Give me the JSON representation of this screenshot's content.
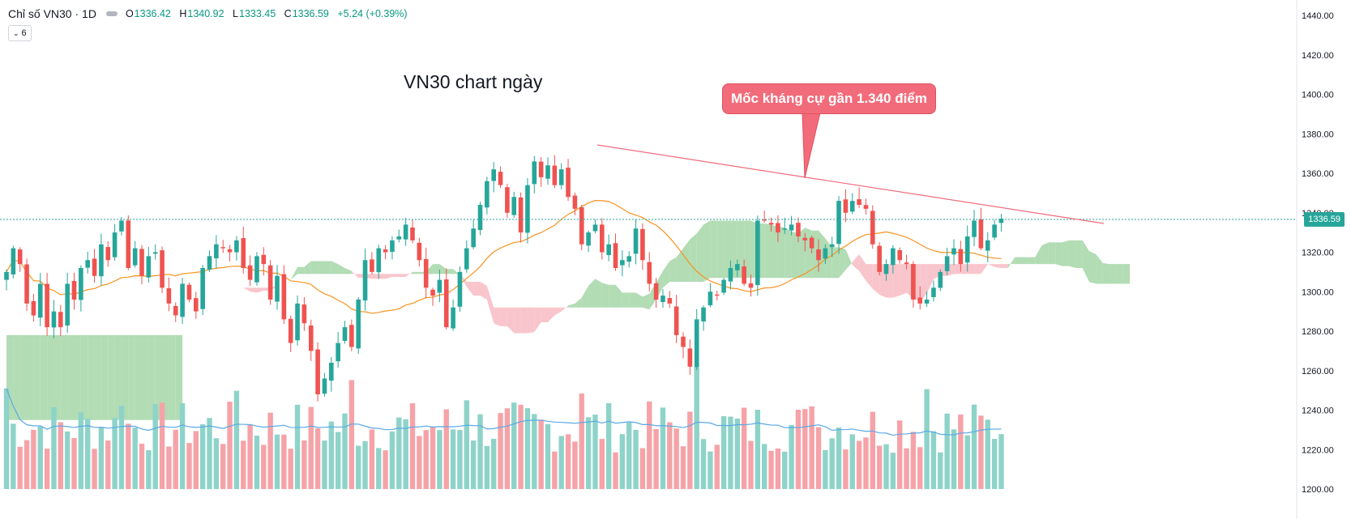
{
  "legend": {
    "title": "Chỉ số VN30 · 1D",
    "o_label": "O",
    "o_val": "1336.42",
    "h_label": "H",
    "h_val": "1340.92",
    "l_label": "L",
    "l_val": "1333.45",
    "c_label": "C",
    "c_val": "1336.59",
    "change": "+5.24 (+0.39%)",
    "indicators_count": "6"
  },
  "annotations": {
    "title": "VN30 chart ngày",
    "callout": "Mốc kháng cự gần 1.340 điểm"
  },
  "colors": {
    "up": "#26a69a",
    "down": "#ef5350",
    "vol_up": "#8ed3c9",
    "vol_down": "#f5a3a8",
    "ma": "#f7931e",
    "vol_ma": "#5aa8e6",
    "cloud_green": "#a5d6a7",
    "cloud_red": "#f8bbc3",
    "trendline": "#f06b7d"
  },
  "chart_data": {
    "type": "candlestick",
    "title": "Chỉ số VN30 · 1D",
    "y_axis": {
      "ticks": [
        1440,
        1420,
        1400,
        1380,
        1360,
        1340,
        1320,
        1300,
        1280,
        1260,
        1240,
        1220,
        1200
      ],
      "labels": [
        "1440.00",
        "1420.00",
        "1400.00",
        "1380.00",
        "1360.00",
        "1340.00",
        "1320.00",
        "1300.00",
        "1280.00",
        "1260.00",
        "1240.00",
        "1220.00",
        "1200.00"
      ],
      "range": [
        1196,
        1447
      ]
    },
    "last_price": 1336.59,
    "last_price_label": "1336.59",
    "closes": [
      1310,
      1322,
      1314,
      1294,
      1288,
      1304,
      1282,
      1290,
      1282,
      1304,
      1296,
      1312,
      1316,
      1308,
      1324,
      1316,
      1330,
      1336,
      1312,
      1322,
      1308,
      1318,
      1320,
      1302,
      1294,
      1288,
      1304,
      1296,
      1290,
      1312,
      1318,
      1324,
      1322,
      1320,
      1326,
      1312,
      1306,
      1318,
      1314,
      1296,
      1308,
      1286,
      1274,
      1294,
      1284,
      1270,
      1248,
      1256,
      1264,
      1274,
      1282,
      1272,
      1296,
      1316,
      1310,
      1322,
      1320,
      1326,
      1328,
      1334,
      1326,
      1316,
      1302,
      1298,
      1306,
      1282,
      1292,
      1310,
      1322,
      1332,
      1344,
      1356,
      1362,
      1354,
      1340,
      1348,
      1330,
      1354,
      1366,
      1358,
      1364,
      1354,
      1362,
      1348,
      1342,
      1324,
      1330,
      1334,
      1320,
      1324,
      1312,
      1316,
      1318,
      1332,
      1316,
      1304,
      1296,
      1298,
      1294,
      1278,
      1272,
      1262,
      1286,
      1292,
      1300,
      1298,
      1306,
      1312,
      1314,
      1304,
      1302,
      1336,
      1336,
      1334,
      1330,
      1332,
      1334,
      1328,
      1326,
      1322,
      1316,
      1322,
      1324,
      1346,
      1340,
      1346,
      1344,
      1342,
      1324,
      1310,
      1314,
      1322,
      1316,
      1314,
      1296,
      1294,
      1296,
      1302,
      1310,
      1318,
      1322,
      1314,
      1328,
      1336,
      1322,
      1326,
      1334,
      1337
    ],
    "volume_axis_range": [
      0,
      100
    ]
  }
}
